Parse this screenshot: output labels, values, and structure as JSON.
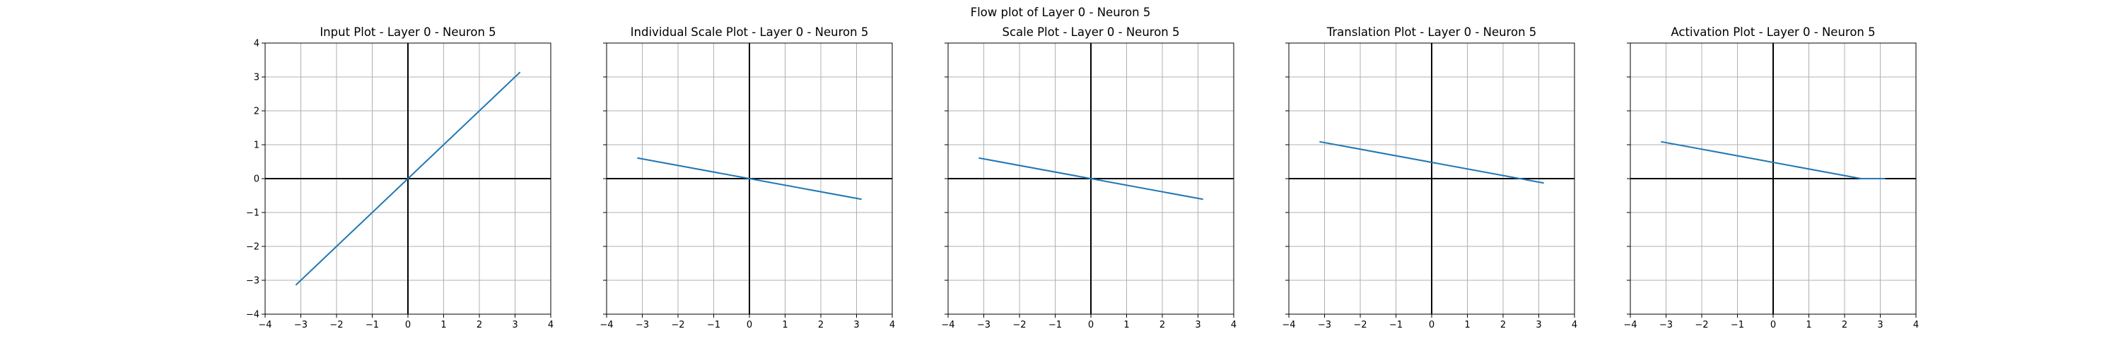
{
  "figure": {
    "suptitle": "Flow plot of Layer 0 - Neuron 5"
  },
  "chart_data": [
    {
      "type": "line",
      "title": "Input Plot - Layer 0 - Neuron 5",
      "xlabel": "",
      "ylabel": "",
      "xlim": [
        -4,
        4
      ],
      "ylim": [
        -4,
        4
      ],
      "xticks": [
        -4,
        -3,
        -2,
        -1,
        0,
        1,
        2,
        3,
        4
      ],
      "yticks": [
        -4,
        -3,
        -2,
        -1,
        0,
        1,
        2,
        3,
        4
      ],
      "yticklabels_visible": true,
      "grid": true,
      "line_color": "#1f77b4",
      "series": [
        {
          "x": [
            -3.1416,
            3.1416
          ],
          "y": [
            -3.1416,
            3.1416
          ]
        }
      ]
    },
    {
      "type": "line",
      "title": "Individual Scale Plot - Layer 0 - Neuron 5",
      "xlabel": "",
      "ylabel": "",
      "xlim": [
        -4,
        4
      ],
      "ylim": [
        -4,
        4
      ],
      "xticks": [
        -4,
        -3,
        -2,
        -1,
        0,
        1,
        2,
        3,
        4
      ],
      "yticks": [
        -4,
        -3,
        -2,
        -1,
        0,
        1,
        2,
        3,
        4
      ],
      "yticklabels_visible": false,
      "grid": true,
      "line_color": "#1f77b4",
      "series": [
        {
          "x": [
            -3.1416,
            3.1416
          ],
          "y": [
            0.61,
            -0.61
          ]
        }
      ]
    },
    {
      "type": "line",
      "title": "Scale Plot - Layer 0 - Neuron 5",
      "xlabel": "",
      "ylabel": "",
      "xlim": [
        -4,
        4
      ],
      "ylim": [
        -4,
        4
      ],
      "xticks": [
        -4,
        -3,
        -2,
        -1,
        0,
        1,
        2,
        3,
        4
      ],
      "yticks": [
        -4,
        -3,
        -2,
        -1,
        0,
        1,
        2,
        3,
        4
      ],
      "yticklabels_visible": false,
      "grid": true,
      "line_color": "#1f77b4",
      "series": [
        {
          "x": [
            -3.1416,
            3.1416
          ],
          "y": [
            0.61,
            -0.61
          ]
        }
      ]
    },
    {
      "type": "line",
      "title": "Translation Plot - Layer 0 - Neuron 5",
      "xlabel": "",
      "ylabel": "",
      "xlim": [
        -4,
        4
      ],
      "ylim": [
        -4,
        4
      ],
      "xticks": [
        -4,
        -3,
        -2,
        -1,
        0,
        1,
        2,
        3,
        4
      ],
      "yticks": [
        -4,
        -3,
        -2,
        -1,
        0,
        1,
        2,
        3,
        4
      ],
      "yticklabels_visible": false,
      "grid": true,
      "line_color": "#1f77b4",
      "series": [
        {
          "x": [
            -3.1416,
            3.1416
          ],
          "y": [
            1.09,
            -0.13
          ]
        }
      ]
    },
    {
      "type": "line",
      "title": "Activation Plot - Layer 0 - Neuron 5",
      "xlabel": "",
      "ylabel": "",
      "xlim": [
        -4,
        4
      ],
      "ylim": [
        -4,
        4
      ],
      "xticks": [
        -4,
        -3,
        -2,
        -1,
        0,
        1,
        2,
        3,
        4
      ],
      "yticks": [
        -4,
        -3,
        -2,
        -1,
        0,
        1,
        2,
        3,
        4
      ],
      "yticklabels_visible": false,
      "grid": true,
      "line_color": "#1f77b4",
      "series": [
        {
          "x": [
            -3.1416,
            2.46,
            3.1416
          ],
          "y": [
            1.09,
            0.0,
            0.0
          ]
        }
      ]
    }
  ]
}
